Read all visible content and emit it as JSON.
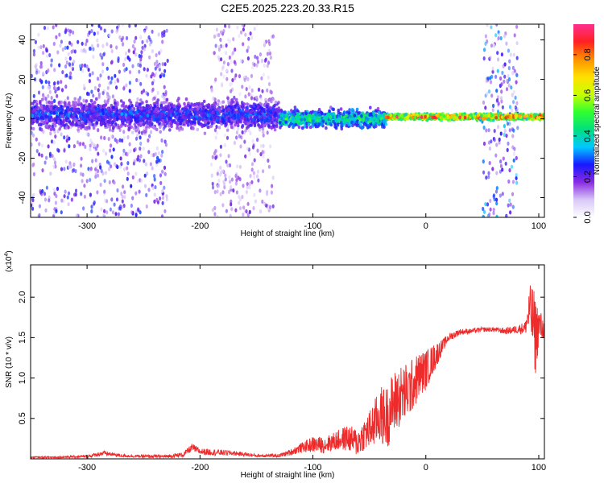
{
  "figure_title": "C2E5.2025.223.20.33.R15",
  "colors": {
    "snr_line": "#ee2a2a",
    "axis": "#000000",
    "background": "#ffffff"
  },
  "chart_data": [
    {
      "type": "heatmap",
      "title": "",
      "xlabel": "Height of straight line (km)",
      "ylabel": "Frequency (Hz)",
      "xlim": [
        -350,
        105
      ],
      "ylim": [
        -50,
        48
      ],
      "xticks": [
        -300,
        -200,
        -100,
        0,
        100
      ],
      "yticks": [
        -40,
        -20,
        0,
        20,
        40
      ],
      "xtick_labels": [
        "-300",
        "-200",
        "-100",
        "0",
        "100"
      ],
      "ytick_labels": [
        "-40",
        "-20",
        "0",
        "20",
        "40"
      ],
      "colorbar": {
        "label": "Normalized spectral amplitude",
        "range": [
          0,
          0.95
        ],
        "ticks": [
          0.0,
          0.2,
          0.4,
          0.6,
          0.8
        ],
        "tick_labels": [
          "0.0",
          "0.2",
          "0.4",
          "0.6",
          "0.8"
        ],
        "colormap": [
          "#ffffff",
          "#d8c8f8",
          "#8a2be2",
          "#1818ff",
          "#00c8ff",
          "#00e080",
          "#30ff30",
          "#c8ff00",
          "#ffe000",
          "#ff9000",
          "#ff2020",
          "#ff3090"
        ]
      },
      "features": [
        {
          "kind": "broadband-noise",
          "x_range": [
            -350,
            -228
          ],
          "freq_range": [
            -50,
            48
          ],
          "level": 0.2
        },
        {
          "kind": "broadband-noise",
          "x_range": [
            -190,
            -135
          ],
          "freq_range": [
            -50,
            48
          ],
          "level": 0.15
        },
        {
          "kind": "broadband-noise",
          "x_range": [
            50,
            82
          ],
          "freq_range": [
            -50,
            48
          ],
          "level": 0.25
        },
        {
          "kind": "carrier-band",
          "x_range": [
            -350,
            -130
          ],
          "center_hz": 2,
          "halfwidth_hz": 10,
          "level": 0.3
        },
        {
          "kind": "carrier-band",
          "x_range": [
            -130,
            -35
          ],
          "center_hz": 0,
          "halfwidth_hz": 6,
          "level": 0.5
        },
        {
          "kind": "carrier-band",
          "x_range": [
            -35,
            105
          ],
          "center_hz": 1,
          "halfwidth_hz": 2,
          "level": 0.9
        }
      ]
    },
    {
      "type": "line",
      "title": "",
      "xlabel": "Height of straight line (km)",
      "ylabel": "SNR (10 * v/v)",
      "y_multiplier_label": "(x10",
      "y_multiplier_exp": "4",
      "y_multiplier_close": ")",
      "xlim": [
        -350,
        105
      ],
      "ylim": [
        0,
        2.4
      ],
      "xticks": [
        -300,
        -200,
        -100,
        0,
        100
      ],
      "yticks": [
        0.5,
        1.0,
        1.5,
        2.0
      ],
      "xtick_labels": [
        "-300",
        "-200",
        "-100",
        "0",
        "100"
      ],
      "ytick_labels": [
        "0.5",
        "1.0",
        "1.5",
        "2.0"
      ],
      "series": [
        {
          "x": [
            -350,
            -330,
            -300,
            -285,
            -270,
            -250,
            -230,
            -215,
            -207,
            -200,
            -185,
            -170,
            -150,
            -130,
            -120,
            -110,
            -100,
            -90,
            -80,
            -70,
            -60,
            -55,
            -50,
            -45,
            -40,
            -35,
            -30,
            -25,
            -20,
            -15,
            -10,
            -5,
            0,
            5,
            10,
            15,
            20,
            30,
            40,
            50,
            60,
            70,
            80,
            88,
            92,
            95,
            97,
            100,
            105
          ],
          "y": [
            0.02,
            0.02,
            0.03,
            0.07,
            0.04,
            0.03,
            0.03,
            0.05,
            0.14,
            0.09,
            0.08,
            0.07,
            0.04,
            0.04,
            0.08,
            0.14,
            0.18,
            0.17,
            0.22,
            0.26,
            0.2,
            0.3,
            0.35,
            0.45,
            0.55,
            0.5,
            0.65,
            0.75,
            0.8,
            0.85,
            0.95,
            1.05,
            1.1,
            1.2,
            1.3,
            1.4,
            1.5,
            1.57,
            1.58,
            1.6,
            1.6,
            1.58,
            1.6,
            1.62,
            1.85,
            1.7,
            1.5,
            1.65,
            1.6
          ],
          "noise": [
            0.01,
            0.01,
            0.02,
            0.03,
            0.02,
            0.02,
            0.02,
            0.03,
            0.05,
            0.04,
            0.04,
            0.03,
            0.02,
            0.02,
            0.04,
            0.06,
            0.1,
            0.1,
            0.12,
            0.16,
            0.18,
            0.2,
            0.25,
            0.3,
            0.35,
            0.4,
            0.4,
            0.4,
            0.38,
            0.35,
            0.32,
            0.28,
            0.25,
            0.2,
            0.15,
            0.08,
            0.05,
            0.04,
            0.03,
            0.03,
            0.03,
            0.04,
            0.05,
            0.08,
            0.3,
            0.45,
            0.5,
            0.25,
            0.1
          ]
        }
      ]
    }
  ]
}
